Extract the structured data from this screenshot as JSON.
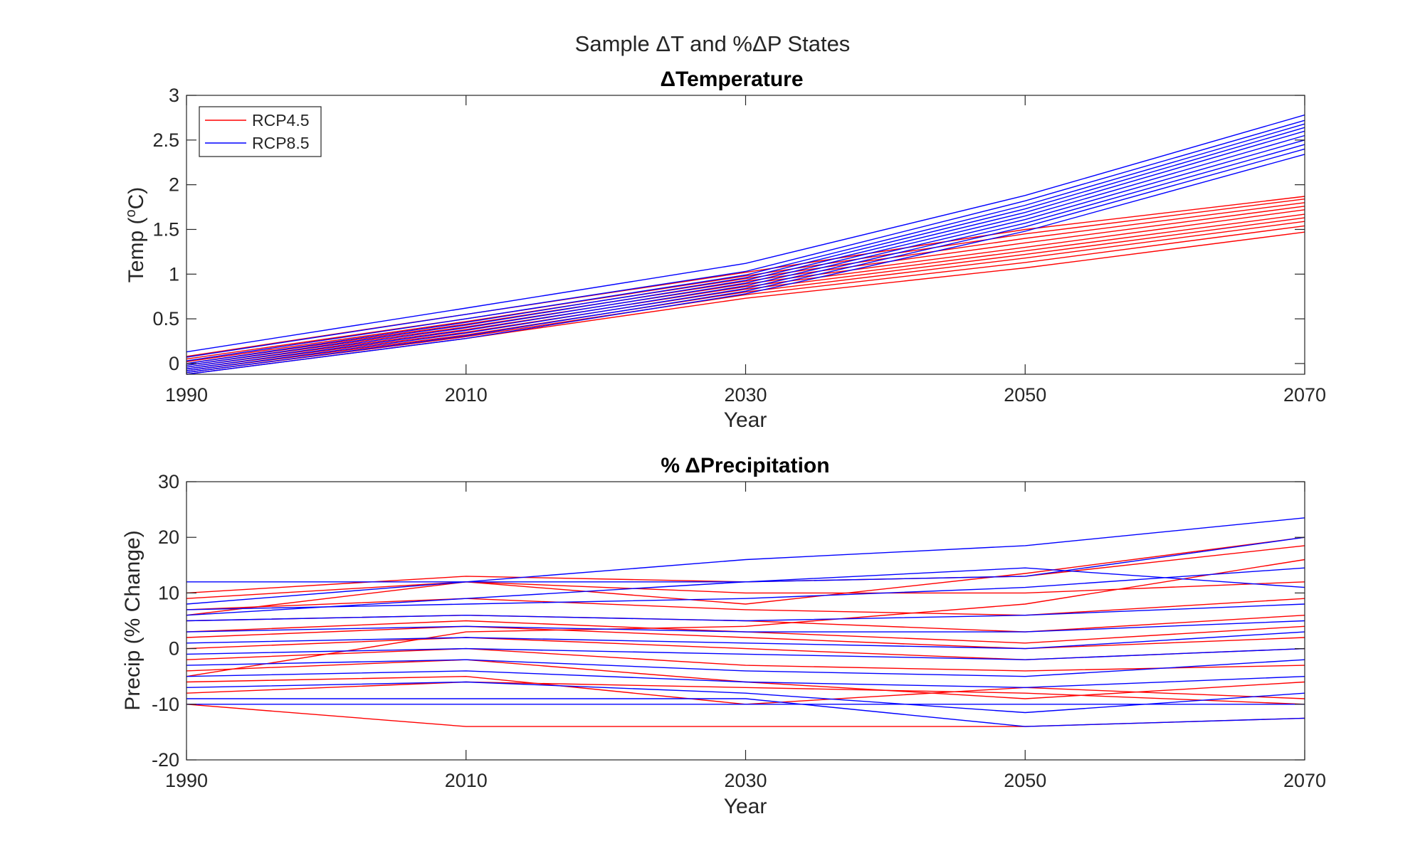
{
  "figure": {
    "suptitle": "Sample ΔT and %ΔP States"
  },
  "legend": {
    "entries": [
      {
        "label": "RCP4.5",
        "color": "#ff0000"
      },
      {
        "label": "RCP8.5",
        "color": "#0000ff"
      }
    ]
  },
  "chart_data": [
    {
      "type": "line",
      "title": "ΔTemperature",
      "xlabel": "Year",
      "ylabel": "Temp (oC)",
      "ylabel_parts": {
        "before": "Temp (",
        "sup": "o",
        "after": "C)"
      },
      "xlim": [
        1990,
        2070
      ],
      "ylim": [
        -0.12,
        3
      ],
      "xticks": [
        1990,
        2010,
        2030,
        2050,
        2070
      ],
      "yticks": [
        0,
        0.5,
        1,
        1.5,
        2,
        2.5,
        3
      ],
      "ytick_labels": [
        "0",
        "0.5",
        "1",
        "1.5",
        "2",
        "2.5",
        "3"
      ],
      "legend_position": "top-left",
      "x": [
        1990,
        2010,
        2030,
        2050,
        2070
      ],
      "groups": [
        {
          "legend": "RCP4.5",
          "color": "#ff0000",
          "series": [
            [
              -0.12,
              0.28,
              0.73,
              1.07,
              1.47
            ],
            [
              -0.1,
              0.3,
              0.77,
              1.13,
              1.54
            ],
            [
              -0.08,
              0.32,
              0.8,
              1.18,
              1.59
            ],
            [
              -0.06,
              0.35,
              0.83,
              1.22,
              1.63
            ],
            [
              -0.04,
              0.38,
              0.86,
              1.26,
              1.67
            ],
            [
              -0.02,
              0.41,
              0.89,
              1.3,
              1.72
            ],
            [
              0.0,
              0.44,
              0.92,
              1.35,
              1.76
            ],
            [
              0.02,
              0.47,
              0.95,
              1.4,
              1.8
            ],
            [
              0.05,
              0.5,
              0.98,
              1.45,
              1.84
            ],
            [
              0.08,
              0.55,
              1.02,
              1.5,
              1.87
            ]
          ]
        },
        {
          "legend": "RCP8.5",
          "color": "#0000ff",
          "series": [
            [
              -0.12,
              0.28,
              0.78,
              1.48,
              2.34
            ],
            [
              -0.1,
              0.31,
              0.81,
              1.53,
              2.4
            ],
            [
              -0.08,
              0.34,
              0.84,
              1.57,
              2.45
            ],
            [
              -0.06,
              0.37,
              0.87,
              1.61,
              2.5
            ],
            [
              -0.04,
              0.4,
              0.9,
              1.65,
              2.55
            ],
            [
              -0.02,
              0.43,
              0.93,
              1.69,
              2.6
            ],
            [
              0.0,
              0.46,
              0.96,
              1.73,
              2.64
            ],
            [
              0.03,
              0.5,
              0.99,
              1.77,
              2.68
            ],
            [
              0.07,
              0.55,
              1.03,
              1.82,
              2.72
            ],
            [
              0.13,
              0.62,
              1.12,
              1.88,
              2.78
            ]
          ]
        }
      ]
    },
    {
      "type": "line",
      "title": "% ΔPrecipitation",
      "xlabel": "Year",
      "ylabel": "Precip (% Change)",
      "xlim": [
        1990,
        2070
      ],
      "ylim": [
        -20,
        30
      ],
      "xticks": [
        1990,
        2010,
        2030,
        2050,
        2070
      ],
      "yticks": [
        -20,
        -10,
        0,
        10,
        20,
        30
      ],
      "ytick_labels": [
        "-20",
        "-10",
        "0",
        "10",
        "20",
        "30"
      ],
      "x": [
        1990,
        2010,
        2030,
        2050,
        2070
      ],
      "groups": [
        {
          "legend": "RCP4.5",
          "color": "#ff0000",
          "series": [
            [
              -10,
              -14,
              -14,
              -14,
              -12.5
            ],
            [
              -6,
              -5,
              -10,
              -7,
              -9
            ],
            [
              -4,
              -2,
              -6,
              -9,
              -6
            ],
            [
              -2,
              0,
              -3,
              -4,
              -3
            ],
            [
              0,
              2,
              0,
              -2,
              0
            ],
            [
              2,
              4,
              2,
              0,
              2
            ],
            [
              3,
              5,
              3,
              1,
              4
            ],
            [
              5,
              6,
              5,
              3,
              6
            ],
            [
              7,
              9,
              7,
              6,
              9
            ],
            [
              9,
              12,
              10,
              10,
              12
            ],
            [
              10,
              13,
              12,
              13,
              18.5
            ],
            [
              6,
              12,
              8,
              13.5,
              20
            ],
            [
              -5,
              3,
              4,
              8,
              16
            ],
            [
              -8,
              -6,
              -7,
              -8,
              -10
            ]
          ]
        },
        {
          "legend": "RCP8.5",
          "color": "#0000ff",
          "series": [
            [
              12,
              12,
              16,
              18.5,
              23.5
            ],
            [
              8,
              12,
              12,
              14.5,
              11
            ],
            [
              -10,
              -10,
              -10,
              -10,
              -10
            ],
            [
              -9,
              -9,
              -9,
              -14,
              -12.5
            ],
            [
              -7,
              -6,
              -8,
              -11.5,
              -8
            ],
            [
              -5,
              -4,
              -6,
              -7,
              -5
            ],
            [
              -3,
              -2,
              -4,
              -5,
              -2
            ],
            [
              -1,
              0,
              -1,
              -2,
              0
            ],
            [
              1,
              2,
              1,
              0,
              3
            ],
            [
              3,
              4,
              3,
              3,
              5
            ],
            [
              5,
              6,
              5,
              6,
              8
            ],
            [
              7,
              8,
              9,
              11,
              14.5
            ],
            [
              6,
              9,
              12,
              13,
              20
            ]
          ]
        }
      ]
    }
  ]
}
